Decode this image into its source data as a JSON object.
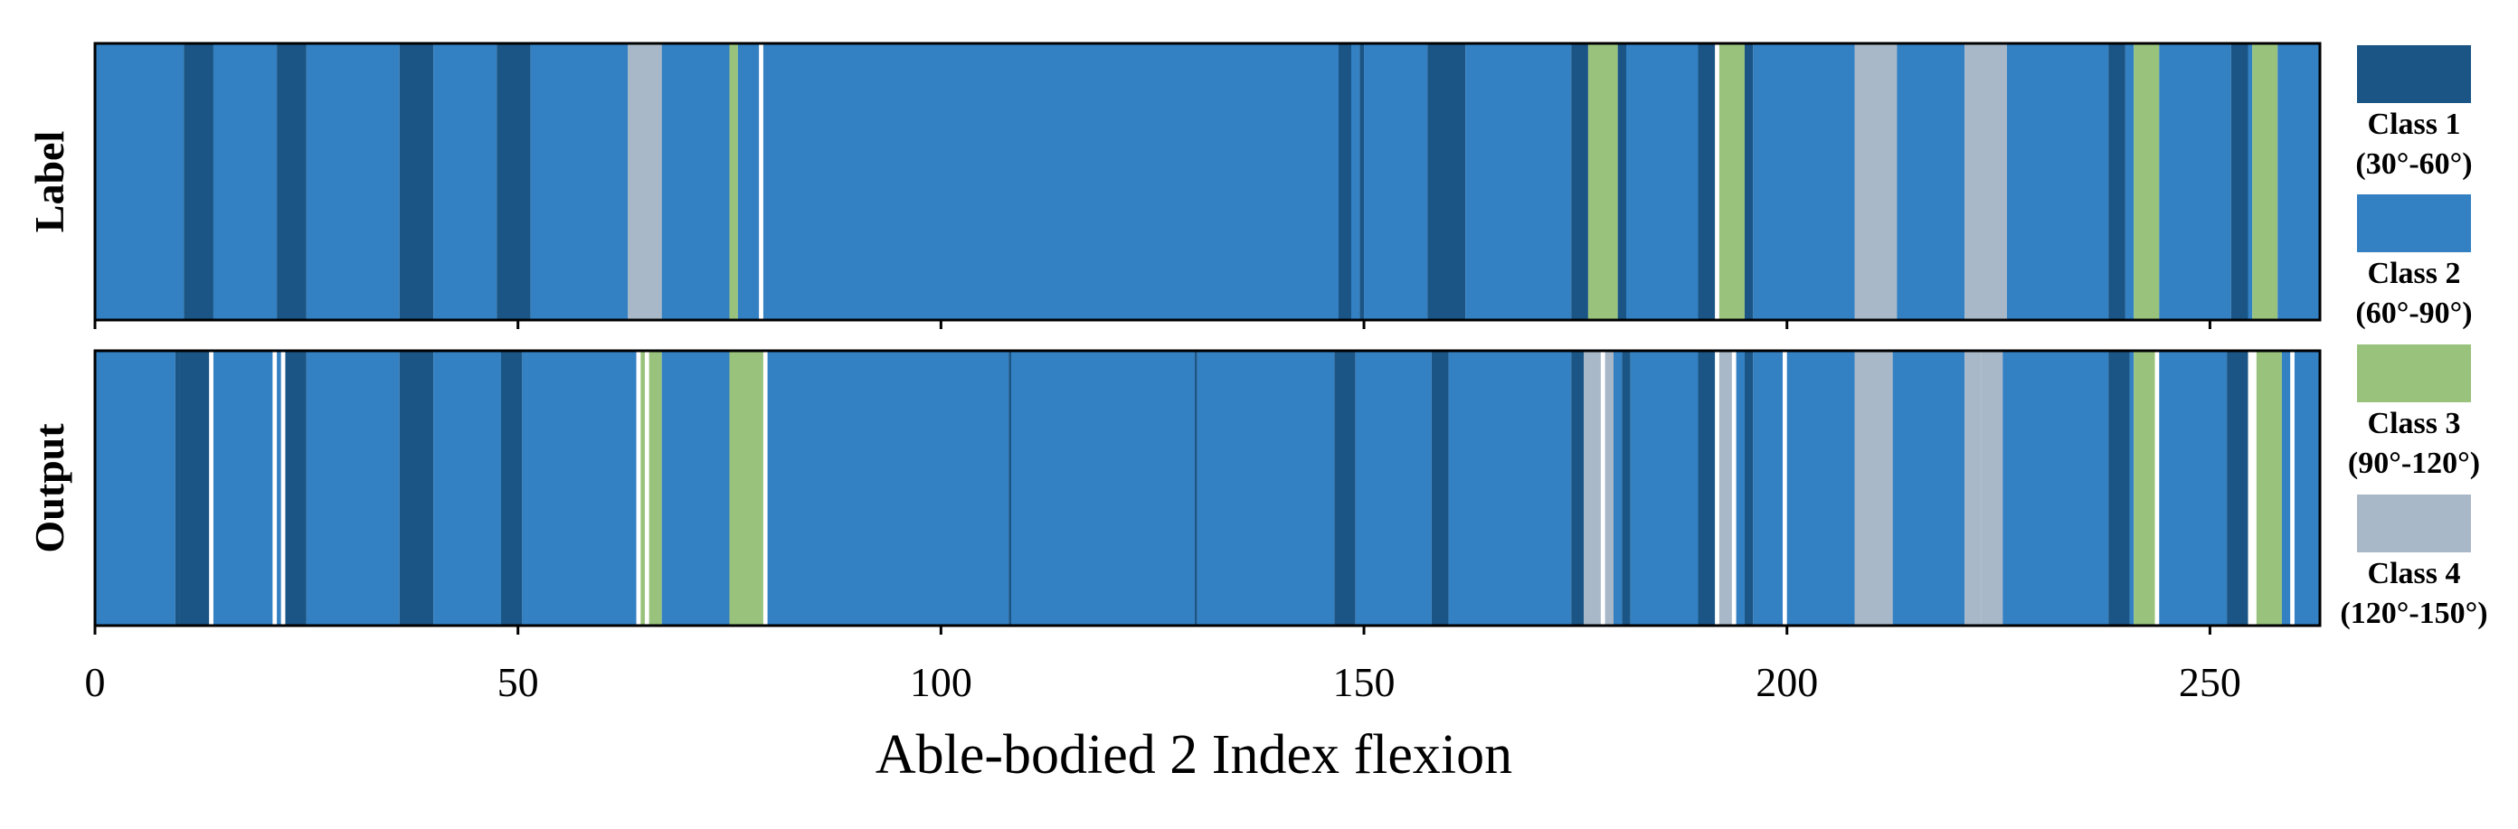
{
  "chart_data": {
    "type": "heatmap",
    "title": "",
    "xlabel": "Able-bodied 2  Index flexion",
    "xlim": [
      0,
      263
    ],
    "xticks": [
      0,
      50,
      100,
      150,
      200,
      250
    ],
    "grid": false,
    "legend_position": "right",
    "classes": [
      {
        "id": 1,
        "name": "Class 1",
        "range": "(30°-60°)",
        "color": "#1a5585"
      },
      {
        "id": 2,
        "name": "Class 2",
        "range": "(60°-90°)",
        "color": "#3380c3"
      },
      {
        "id": 3,
        "name": "Class 3",
        "range": "(90°-120°)",
        "color": "#99c37d"
      },
      {
        "id": 4,
        "name": "Class 4",
        "range": "(120°-150°)",
        "color": "#a9b8c8"
      }
    ],
    "rows": [
      {
        "name": "Label",
        "segments": [
          [
            0,
            10.5,
            2
          ],
          [
            10.5,
            14,
            1
          ],
          [
            14,
            21.5,
            2
          ],
          [
            21.5,
            25,
            1
          ],
          [
            25,
            36,
            2
          ],
          [
            36,
            40,
            1
          ],
          [
            40,
            47.5,
            2
          ],
          [
            47.5,
            51.5,
            1
          ],
          [
            51.5,
            63,
            2
          ],
          [
            63,
            67,
            4
          ],
          [
            67,
            75,
            2
          ],
          [
            75,
            76,
            3
          ],
          [
            76,
            78.5,
            2
          ],
          [
            78.5,
            79,
            0
          ],
          [
            79,
            147,
            2
          ],
          [
            147,
            148.5,
            1
          ],
          [
            148.5,
            149.5,
            2
          ],
          [
            149.5,
            150,
            1
          ],
          [
            150,
            157.5,
            2
          ],
          [
            157.5,
            162,
            1
          ],
          [
            162,
            174.5,
            2
          ],
          [
            174.5,
            176.5,
            1
          ],
          [
            176.5,
            180,
            3
          ],
          [
            180,
            181,
            1
          ],
          [
            181,
            189.5,
            2
          ],
          [
            189.5,
            191.5,
            1
          ],
          [
            191.5,
            192,
            0
          ],
          [
            192,
            195,
            3
          ],
          [
            195,
            196,
            1
          ],
          [
            196,
            208,
            2
          ],
          [
            208,
            213,
            4
          ],
          [
            213,
            221,
            2
          ],
          [
            221,
            226,
            4
          ],
          [
            226,
            238,
            2
          ],
          [
            238,
            240,
            1
          ],
          [
            240,
            241,
            2
          ],
          [
            241,
            244,
            3
          ],
          [
            244,
            252.5,
            2
          ],
          [
            252.5,
            254.5,
            1
          ],
          [
            254.5,
            255,
            2
          ],
          [
            255,
            258,
            3
          ],
          [
            258,
            263,
            2
          ]
        ]
      },
      {
        "name": "Output",
        "segments": [
          [
            0,
            9.5,
            2
          ],
          [
            9.5,
            10,
            1
          ],
          [
            10,
            13.5,
            1
          ],
          [
            13.5,
            14,
            0
          ],
          [
            14,
            21,
            2
          ],
          [
            21,
            21.5,
            0
          ],
          [
            21.5,
            22,
            2
          ],
          [
            22,
            22.5,
            0
          ],
          [
            22.5,
            25,
            1
          ],
          [
            25,
            36,
            2
          ],
          [
            36,
            40,
            1
          ],
          [
            40,
            48,
            2
          ],
          [
            48,
            50.5,
            1
          ],
          [
            50.5,
            51,
            2
          ],
          [
            51,
            64,
            2
          ],
          [
            64,
            64.5,
            0
          ],
          [
            64.5,
            65,
            3
          ],
          [
            65,
            65.5,
            0
          ],
          [
            65.5,
            67,
            3
          ],
          [
            67,
            75,
            2
          ],
          [
            75,
            79,
            3
          ],
          [
            79,
            79.5,
            0
          ],
          [
            79.5,
            108,
            2
          ],
          [
            108,
            108.3,
            1
          ],
          [
            108.3,
            130,
            2
          ],
          [
            130,
            130.3,
            1
          ],
          [
            130.3,
            146.5,
            2
          ],
          [
            146.5,
            149,
            1
          ],
          [
            149,
            158,
            2
          ],
          [
            158,
            160,
            1
          ],
          [
            160,
            174.5,
            2
          ],
          [
            174.5,
            176,
            1
          ],
          [
            176,
            178,
            4
          ],
          [
            178,
            178.5,
            0
          ],
          [
            178.5,
            179.5,
            4
          ],
          [
            179.5,
            180.5,
            2
          ],
          [
            180.5,
            181.5,
            1
          ],
          [
            181.5,
            189.5,
            2
          ],
          [
            189.5,
            191.5,
            1
          ],
          [
            191.5,
            192,
            0
          ],
          [
            192,
            193.5,
            4
          ],
          [
            193.5,
            194,
            0
          ],
          [
            194,
            195,
            2
          ],
          [
            195,
            196,
            1
          ],
          [
            196,
            199.5,
            2
          ],
          [
            199.5,
            200,
            0
          ],
          [
            200,
            208,
            2
          ],
          [
            208,
            212.5,
            4
          ],
          [
            212.5,
            221,
            2
          ],
          [
            221,
            223,
            4
          ],
          [
            223,
            225.5,
            4
          ],
          [
            225.5,
            238,
            2
          ],
          [
            238,
            240.5,
            1
          ],
          [
            240.5,
            241,
            2
          ],
          [
            241,
            243.5,
            3
          ],
          [
            243.5,
            244,
            0
          ],
          [
            244,
            252,
            2
          ],
          [
            252,
            254.5,
            1
          ],
          [
            254.5,
            255.5,
            0
          ],
          [
            255.5,
            258.5,
            3
          ],
          [
            258.5,
            259.5,
            2
          ],
          [
            259.5,
            260,
            0
          ],
          [
            260,
            263,
            2
          ]
        ]
      }
    ]
  }
}
